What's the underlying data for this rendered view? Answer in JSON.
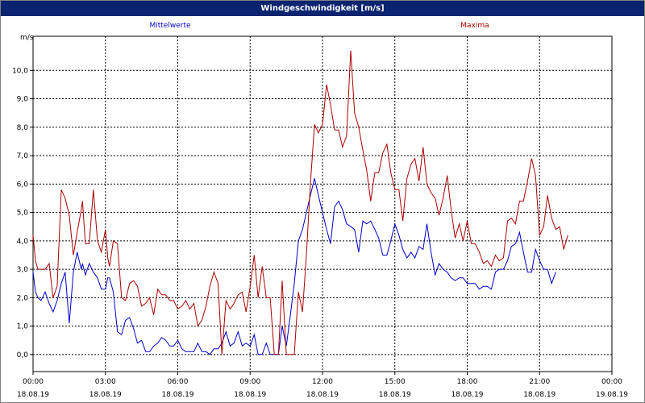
{
  "window": {
    "title": "Windgeschwindigkeit [m/s]"
  },
  "chart_data": {
    "type": "line",
    "title": "Windgeschwindigkeit [m/s]",
    "ylabel": "m/s",
    "ylim": [
      -0.6,
      11.2
    ],
    "y_ticks": [
      "0,0",
      "1,0",
      "2,0",
      "3,0",
      "4,0",
      "5,0",
      "6,0",
      "7,0",
      "8,0",
      "9,0",
      "10,0"
    ],
    "xlim": [
      0,
      24
    ],
    "x_ticks": [
      {
        "time": "00:00",
        "date": "18.08.19"
      },
      {
        "time": "03:00",
        "date": "18.08.19"
      },
      {
        "time": "06:00",
        "date": "18.08.19"
      },
      {
        "time": "09:00",
        "date": "18.08.19"
      },
      {
        "time": "12:00",
        "date": "18.08.19"
      },
      {
        "time": "15:00",
        "date": "18.08.19"
      },
      {
        "time": "18:00",
        "date": "18.08.19"
      },
      {
        "time": "21:00",
        "date": "18.08.19"
      },
      {
        "time": "00:00",
        "date": "19.08.19"
      }
    ],
    "grid": true,
    "x_hours": [
      0,
      0.1,
      0.2,
      0.33,
      0.5,
      0.67,
      0.83,
      1.0,
      1.17,
      1.33,
      1.5,
      1.67,
      1.83,
      2.0,
      2.05,
      2.17,
      2.33,
      2.5,
      2.67,
      2.83,
      3.0,
      3.1,
      3.17,
      3.33,
      3.5,
      3.67,
      3.83,
      4.0,
      4.17,
      4.33,
      4.5,
      4.67,
      4.83,
      5.0,
      5.17,
      5.33,
      5.5,
      5.67,
      5.83,
      6.0,
      6.17,
      6.33,
      6.5,
      6.67,
      6.83,
      7.0,
      7.17,
      7.33,
      7.5,
      7.67,
      7.83,
      8.0,
      8.17,
      8.33,
      8.5,
      8.67,
      8.83,
      9.0,
      9.17,
      9.33,
      9.5,
      9.67,
      9.83,
      10.0,
      10.17,
      10.33,
      10.5,
      10.67,
      10.83,
      11.0,
      11.17,
      11.33,
      11.5,
      11.67,
      11.83,
      12.0,
      12.17,
      12.33,
      12.5,
      12.67,
      12.83,
      13.0,
      13.17,
      13.33,
      13.5,
      13.67,
      13.83,
      14.0,
      14.17,
      14.33,
      14.5,
      14.67,
      14.83,
      15.0,
      15.17,
      15.33,
      15.5,
      15.67,
      15.83,
      16.0,
      16.17,
      16.33,
      16.5,
      16.67,
      16.83,
      17.0,
      17.17,
      17.33,
      17.5,
      17.67,
      17.83,
      18.0,
      18.17,
      18.33,
      18.5,
      18.67,
      18.83,
      19.0,
      19.17,
      19.33,
      19.5,
      19.67,
      19.83,
      20.0,
      20.17,
      20.33,
      20.5,
      20.67,
      20.83,
      21.0,
      21.17,
      21.33,
      21.5,
      21.67,
      21.83,
      22.0,
      22.17,
      22.33,
      22.5,
      22.67,
      22.83,
      23.0,
      23.17,
      23.33,
      23.5,
      23.67,
      23.83,
      24.0
    ],
    "series": [
      {
        "name": "Mittelwerte",
        "color": "#0000cc",
        "values": [
          2.9,
          2.2,
          2.0,
          1.9,
          2.2,
          1.8,
          1.5,
          1.9,
          2.5,
          2.9,
          1.1,
          2.9,
          3.6,
          3.0,
          3.2,
          2.8,
          3.2,
          2.9,
          2.7,
          2.3,
          2.3,
          2.7,
          2.7,
          2.2,
          0.8,
          0.7,
          1.2,
          1.3,
          0.9,
          0.4,
          0.5,
          0.1,
          0.1,
          0.3,
          0.4,
          0.6,
          0.5,
          0.3,
          0.3,
          0.5,
          0.2,
          0.1,
          0.1,
          0.1,
          0.4,
          0.1,
          0.1,
          0.0,
          0.2,
          0.2,
          0.4,
          0.8,
          0.3,
          0.4,
          0.8,
          0.3,
          0.4,
          0.3,
          0.7,
          0.0,
          0.0,
          0.4,
          0.0,
          0.0,
          0.0,
          1.0,
          0.3,
          1.4,
          2.5,
          4.0,
          4.4,
          5.0,
          5.6,
          6.2,
          5.6,
          5.0,
          4.4,
          3.9,
          5.2,
          5.4,
          5.1,
          4.6,
          4.5,
          4.4,
          3.6,
          4.7,
          4.6,
          4.7,
          4.4,
          4.1,
          3.5,
          3.5,
          4.0,
          4.6,
          4.2,
          3.7,
          3.4,
          3.6,
          3.4,
          3.8,
          3.7,
          4.6,
          3.6,
          2.8,
          3.2,
          3.0,
          2.9,
          2.7,
          2.6,
          2.7,
          2.7,
          2.5,
          2.5,
          2.5,
          2.3,
          2.4,
          2.4,
          2.3,
          2.9,
          3.0,
          3.0,
          3.3,
          3.8,
          3.9,
          4.3,
          3.6,
          2.9,
          2.9,
          3.7,
          3.3,
          3.0,
          3.0,
          2.5,
          2.9
        ],
        "note": "values sampled along x_hours"
      },
      {
        "name": "Maxima",
        "color": "#aa0000",
        "values": [
          4.2,
          3.3,
          3.0,
          3.0,
          3.0,
          3.2,
          2.0,
          2.4,
          5.8,
          5.5,
          4.9,
          3.5,
          4.3,
          5.1,
          5.4,
          3.9,
          3.9,
          5.8,
          4.0,
          3.6,
          4.4,
          3.4,
          3.1,
          4.0,
          3.9,
          2.0,
          1.9,
          2.5,
          2.6,
          2.4,
          1.7,
          1.8,
          2.0,
          1.4,
          2.3,
          2.1,
          2.1,
          1.9,
          1.9,
          1.6,
          1.7,
          1.9,
          1.6,
          1.8,
          1.0,
          1.2,
          1.7,
          2.4,
          2.9,
          2.5,
          0.0,
          1.9,
          1.6,
          1.8,
          2.1,
          2.2,
          1.5,
          2.4,
          3.5,
          2.0,
          3.1,
          2.0,
          2.0,
          0.0,
          0.0,
          2.6,
          0.0,
          0.0,
          0.0,
          2.2,
          1.5,
          3.5,
          6.0,
          8.1,
          7.8,
          8.1,
          9.5,
          8.8,
          7.9,
          7.9,
          7.3,
          7.7,
          10.7,
          8.5,
          8.0,
          7.2,
          6.5,
          5.4,
          6.4,
          6.4,
          7.1,
          7.4,
          6.4,
          5.8,
          5.8,
          4.7,
          6.2,
          6.7,
          6.9,
          6.1,
          7.3,
          6.0,
          5.7,
          5.5,
          4.9,
          5.5,
          6.3,
          5.1,
          4.1,
          4.6,
          4.0,
          4.7,
          3.9,
          3.9,
          3.6,
          3.2,
          3.3,
          3.1,
          3.5,
          3.3,
          3.4,
          4.7,
          4.8,
          4.6,
          5.4,
          5.4,
          6.1,
          6.9,
          6.3,
          4.2,
          4.5,
          5.6,
          4.8,
          4.4,
          4.5,
          3.7,
          4.2
        ],
        "note": "values sampled along x_hours"
      }
    ]
  }
}
